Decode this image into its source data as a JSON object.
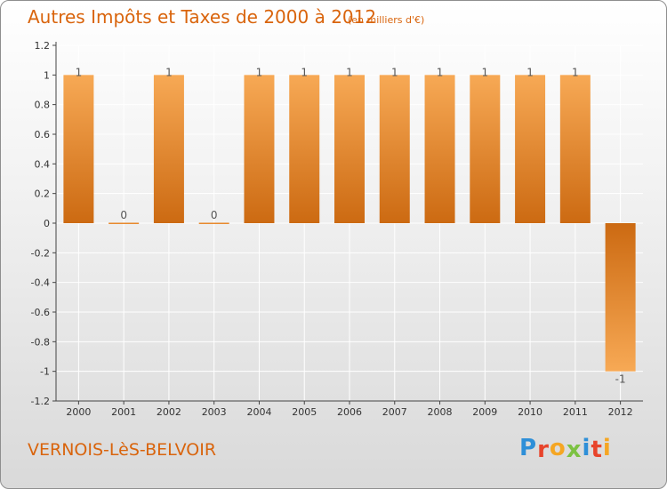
{
  "header": {
    "title": "Autres Impôts et Taxes de 2000 à 2012",
    "subtitle": "(en milliers d'€)"
  },
  "footer": {
    "commune": "VERNOIS-LèS-BELVOIR",
    "logo_text": "Proxiti",
    "logo_letters": [
      {
        "ch": "P",
        "color": "#2e8fd8"
      },
      {
        "ch": "r",
        "color": "#e8442b"
      },
      {
        "ch": "o",
        "color": "#f5a623"
      },
      {
        "ch": "x",
        "color": "#7cc242"
      },
      {
        "ch": "i",
        "color": "#2e8fd8"
      },
      {
        "ch": "t",
        "color": "#e8442b"
      },
      {
        "ch": "i",
        "color": "#f5a623"
      }
    ]
  },
  "colors": {
    "accent": "#d9640c",
    "bar_light": "#f7a955",
    "bar_dark": "#cc6a12",
    "axis": "#444444",
    "grid": "#ffffff"
  },
  "chart_data": {
    "type": "bar",
    "categories": [
      "2000",
      "2001",
      "2002",
      "2003",
      "2004",
      "2005",
      "2006",
      "2007",
      "2008",
      "2009",
      "2010",
      "2011",
      "2012"
    ],
    "values": [
      1,
      0,
      1,
      0,
      1,
      1,
      1,
      1,
      1,
      1,
      1,
      1,
      -1
    ],
    "data_labels": [
      "1",
      "0",
      "1",
      "0",
      "1",
      "1",
      "1",
      "1",
      "1",
      "1",
      "1",
      "1",
      "-1"
    ],
    "yticks": [
      "1.2",
      "1",
      "0.8",
      "0.6",
      "0.4",
      "0.2",
      "0",
      "-0.2",
      "-0.4",
      "-0.6",
      "-0.8",
      "-1",
      "-1.2"
    ],
    "ytick_values": [
      1.2,
      1,
      0.8,
      0.6,
      0.4,
      0.2,
      0,
      -0.2,
      -0.4,
      -0.6,
      -0.8,
      -1,
      -1.2
    ],
    "ylim": [
      -1.2,
      1.2
    ],
    "grid": true
  }
}
